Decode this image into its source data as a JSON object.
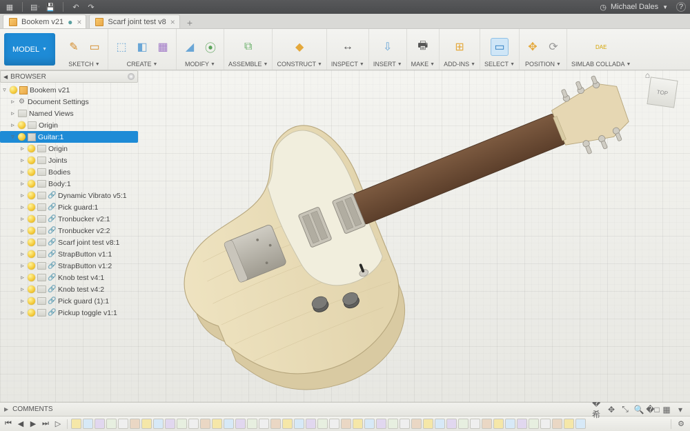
{
  "menubar": {
    "icons": [
      "grid",
      "file",
      "save",
      "undo",
      "redo"
    ],
    "user_name": "Michael Dales",
    "help_icon": "?"
  },
  "tabs": [
    {
      "label": "Bookem v21",
      "active": true,
      "dirty": true
    },
    {
      "label": "Scarf joint test v8",
      "active": false,
      "dirty": false
    }
  ],
  "ribbon": {
    "workspace_label": "MODEL",
    "groups": [
      {
        "label": "SKETCH",
        "dropdown": true,
        "icons": [
          {
            "g": "✎",
            "c": "#d48b2a"
          },
          {
            "g": "▭",
            "c": "#d48b2a"
          }
        ]
      },
      {
        "label": "CREATE",
        "dropdown": true,
        "icons": [
          {
            "g": "⬚",
            "c": "#6aa6d6"
          },
          {
            "g": "◧",
            "c": "#6aa6d6"
          },
          {
            "g": "▦",
            "c": "#a078c7"
          }
        ]
      },
      {
        "label": "MODIFY",
        "dropdown": true,
        "icons": [
          {
            "g": "◢",
            "c": "#6aa6d6"
          },
          {
            "g": "⦿",
            "c": "#5aa35a"
          }
        ]
      },
      {
        "label": "ASSEMBLE",
        "dropdown": true,
        "icons": [
          {
            "g": "⧉",
            "c": "#69b069"
          }
        ]
      },
      {
        "label": "CONSTRUCT",
        "dropdown": true,
        "icons": [
          {
            "g": "◆",
            "c": "#e4a83b"
          }
        ]
      },
      {
        "label": "INSPECT",
        "dropdown": true,
        "icons": [
          {
            "g": "↔",
            "c": "#555"
          }
        ]
      },
      {
        "label": "INSERT",
        "dropdown": true,
        "icons": [
          {
            "g": "⇩",
            "c": "#6aa6d6"
          }
        ]
      },
      {
        "label": "MAKE",
        "dropdown": true,
        "icons": [
          {
            "g": "🖶",
            "c": "#555"
          }
        ]
      },
      {
        "label": "ADD-INS",
        "dropdown": true,
        "icons": [
          {
            "g": "⊞",
            "c": "#e4a83b"
          }
        ]
      },
      {
        "label": "SELECT",
        "dropdown": true,
        "icons": [
          {
            "g": "▭",
            "c": "#2a7bbf",
            "sel": true
          }
        ]
      },
      {
        "label": "POSITION",
        "dropdown": true,
        "icons": [
          {
            "g": "✥",
            "c": "#e4a83b"
          },
          {
            "g": "⟳",
            "c": "#999"
          }
        ]
      },
      {
        "label": "SIMLAB COLLADA",
        "dropdown": true,
        "icons": [
          {
            "g": "DAE",
            "c": "#d4a400"
          }
        ]
      }
    ]
  },
  "browser": {
    "title": "BROWSER",
    "tree": [
      {
        "depth": 0,
        "tw": "▿",
        "icons": [
          "bulb",
          "cubei"
        ],
        "label": "Bookem v21"
      },
      {
        "depth": 1,
        "tw": "▹",
        "icons": [
          "gear"
        ],
        "label": "Document Settings"
      },
      {
        "depth": 1,
        "tw": "▹",
        "icons": [
          "folder"
        ],
        "label": "Named Views"
      },
      {
        "depth": 1,
        "tw": "▹",
        "icons": [
          "bulb",
          "folder"
        ],
        "label": "Origin"
      },
      {
        "depth": 1,
        "tw": "▿",
        "icons": [
          "bulb",
          "comp"
        ],
        "label": "Guitar:1",
        "sel": true
      },
      {
        "depth": 2,
        "tw": "▹",
        "icons": [
          "bulb",
          "folder"
        ],
        "label": "Origin"
      },
      {
        "depth": 2,
        "tw": "▹",
        "icons": [
          "bulb",
          "folder"
        ],
        "label": "Joints"
      },
      {
        "depth": 2,
        "tw": "▹",
        "icons": [
          "bulb",
          "folder"
        ],
        "label": "Bodies"
      },
      {
        "depth": 2,
        "tw": "▹",
        "icons": [
          "bulb",
          "folder"
        ],
        "label": "Body:1"
      },
      {
        "depth": 2,
        "tw": "▹",
        "icons": [
          "bulb",
          "folder",
          "link"
        ],
        "label": "Dynamic Vibrato v5:1"
      },
      {
        "depth": 2,
        "tw": "▹",
        "icons": [
          "bulb",
          "folder",
          "link"
        ],
        "label": "Pick guard:1"
      },
      {
        "depth": 2,
        "tw": "▹",
        "icons": [
          "bulb",
          "folder",
          "link"
        ],
        "label": "Tronbucker v2:1"
      },
      {
        "depth": 2,
        "tw": "▹",
        "icons": [
          "bulb",
          "folder",
          "link"
        ],
        "label": "Tronbucker v2:2"
      },
      {
        "depth": 2,
        "tw": "▹",
        "icons": [
          "bulb",
          "folder",
          "link"
        ],
        "label": "Scarf joint test v8:1"
      },
      {
        "depth": 2,
        "tw": "▹",
        "icons": [
          "bulb",
          "folder",
          "link"
        ],
        "label": "StrapButton v1:1"
      },
      {
        "depth": 2,
        "tw": "▹",
        "icons": [
          "bulb",
          "folder",
          "link"
        ],
        "label": "StrapButton v1:2"
      },
      {
        "depth": 2,
        "tw": "▹",
        "icons": [
          "bulb",
          "folder",
          "link"
        ],
        "label": "Knob test v4:1"
      },
      {
        "depth": 2,
        "tw": "▹",
        "icons": [
          "bulb",
          "folder",
          "link"
        ],
        "label": "Knob test v4:2"
      },
      {
        "depth": 2,
        "tw": "▹",
        "icons": [
          "bulb",
          "folder",
          "link"
        ],
        "label": "Pick guard (1):1"
      },
      {
        "depth": 2,
        "tw": "▹",
        "icons": [
          "bulb",
          "folder",
          "link"
        ],
        "label": "Pickup toggle v1:1"
      }
    ]
  },
  "comments": {
    "label": "COMMENTS",
    "nav_tools": [
      "�希",
      "✥",
      "⤡",
      "🔍",
      "�□",
      "▦",
      "▾"
    ]
  },
  "timeline": {
    "controls": [
      "⏮",
      "◀",
      "▶",
      "⏭",
      "▷"
    ],
    "chips_count": 44,
    "chip_colors": [
      "#f5e7a8",
      "#d7e9f7",
      "#e1d7ef",
      "#e7efe0",
      "#efefef",
      "#ead7c4"
    ]
  },
  "guitar": {
    "body_fill": "#ece0be",
    "body_stroke": "#b7a77e",
    "body_side": "#ddceab",
    "body_grain": "#d6c79f",
    "pickguard_fill": "#f1eedd",
    "pickguard_stroke": "#c7c2ab",
    "neck_fill": "#6b4b36",
    "neck_stroke": "#4c3525",
    "head_fill": "#e6d7b3",
    "metal_fill": "#b9b5ac",
    "metal_dark": "#8e8a80",
    "knob_fill": "#5f5f5d",
    "pickup_fill": "#c7c3b7"
  }
}
